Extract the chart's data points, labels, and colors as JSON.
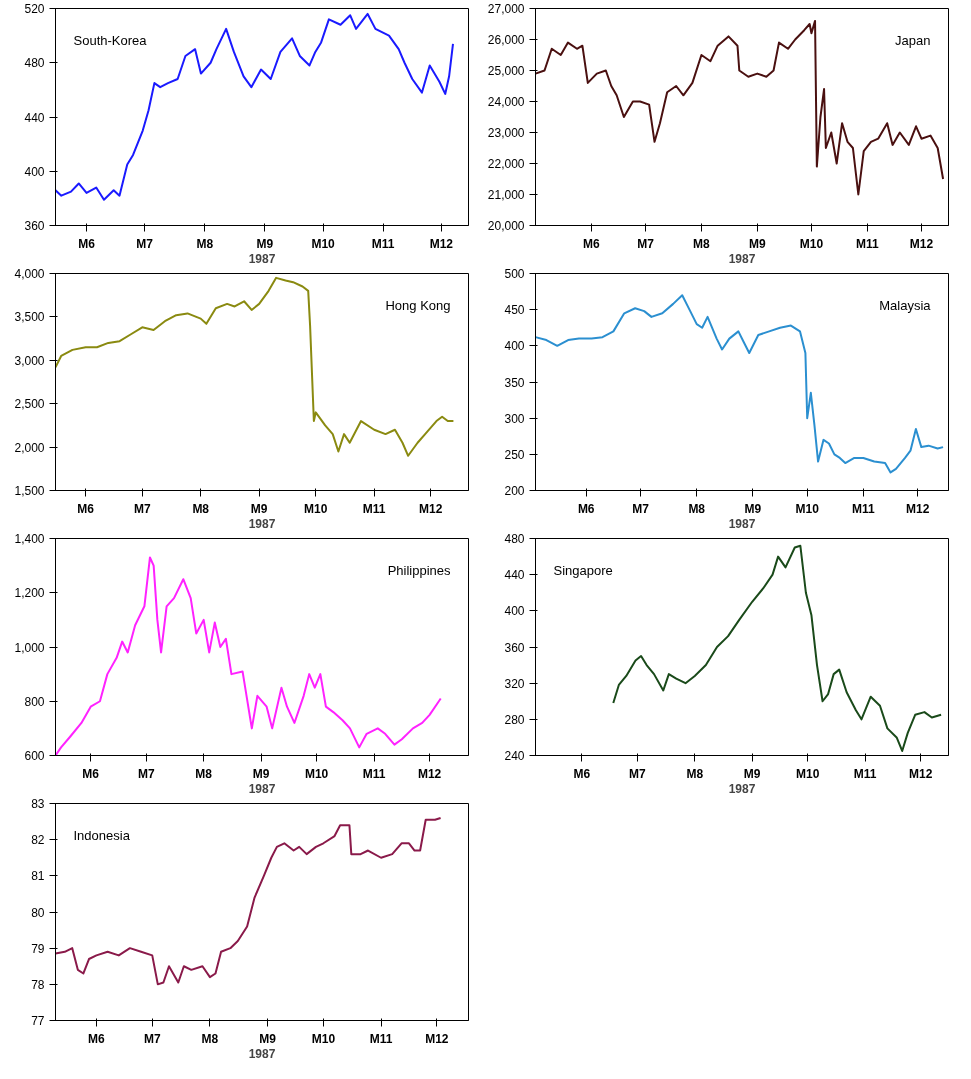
{
  "chart_data": [
    {
      "type": "line",
      "title": "South-Korea",
      "xlabel": "1987",
      "xlim": [
        "1987-05-30",
        "1987-12-29"
      ],
      "ylim": [
        360,
        520
      ],
      "yticks": [
        360,
        400,
        440,
        480,
        520
      ],
      "xticks": [
        {
          "value": "1987-06-15",
          "label": "M6"
        },
        {
          "value": "1987-07-15",
          "label": "M7"
        },
        {
          "value": "1987-08-15",
          "label": "M8"
        },
        {
          "value": "1987-09-15",
          "label": "M9"
        },
        {
          "value": "1987-10-15",
          "label": "M10"
        },
        {
          "value": "1987-11-15",
          "label": "M11"
        },
        {
          "value": "1987-12-15",
          "label": "M12"
        }
      ],
      "x": [
        "1987-05-30",
        "1987-06-02",
        "1987-06-07",
        "1987-06-11",
        "1987-06-15",
        "1987-06-20",
        "1987-06-24",
        "1987-06-29",
        "1987-07-02",
        "1987-07-06",
        "1987-07-09",
        "1987-07-14",
        "1987-07-17",
        "1987-07-20",
        "1987-07-23",
        "1987-07-27",
        "1987-08-01",
        "1987-08-05",
        "1987-08-10",
        "1987-08-13",
        "1987-08-18",
        "1987-08-21",
        "1987-08-26",
        "1987-08-30",
        "1987-09-04",
        "1987-09-08",
        "1987-09-13",
        "1987-09-18",
        "1987-09-23",
        "1987-09-29",
        "1987-10-03",
        "1987-10-08",
        "1987-10-11",
        "1987-10-14",
        "1987-10-18",
        "1987-10-24",
        "1987-10-29",
        "1987-11-01",
        "1987-11-07",
        "1987-11-11",
        "1987-11-18",
        "1987-11-23",
        "1987-11-26",
        "1987-11-30",
        "1987-12-05",
        "1987-12-09",
        "1987-12-14",
        "1987-12-17",
        "1987-12-19",
        "1987-12-21"
      ],
      "series": [
        {
          "color": "#1a1aff",
          "values": [
            386,
            382,
            385,
            391,
            384,
            388,
            379,
            386,
            382,
            405,
            412,
            430,
            445,
            465,
            462,
            465,
            468,
            485,
            490,
            472,
            480,
            490,
            505,
            488,
            470,
            462,
            475,
            468,
            488,
            498,
            485,
            478,
            488,
            495,
            512,
            508,
            515,
            505,
            516,
            505,
            500,
            490,
            480,
            468,
            458,
            478,
            466,
            457,
            470,
            494
          ]
        }
      ]
    },
    {
      "type": "line",
      "title": "Japan",
      "xlabel": "1987",
      "xlim": [
        "1987-05-15",
        "1987-12-30"
      ],
      "ylim": [
        20000,
        27000
      ],
      "yticks": [
        {
          "value": 20000,
          "label": "20,000"
        },
        {
          "value": 21000,
          "label": "21,000"
        },
        {
          "value": 22000,
          "label": "22,000"
        },
        {
          "value": 23000,
          "label": "23,000"
        },
        {
          "value": 24000,
          "label": "24,000"
        },
        {
          "value": 25000,
          "label": "25,000"
        },
        {
          "value": 26000,
          "label": "26,000"
        },
        {
          "value": 27000,
          "label": "27,000"
        }
      ],
      "xticks": [
        {
          "value": "1987-06-15",
          "label": "M6"
        },
        {
          "value": "1987-07-15",
          "label": "M7"
        },
        {
          "value": "1987-08-15",
          "label": "M8"
        },
        {
          "value": "1987-09-15",
          "label": "M9"
        },
        {
          "value": "1987-10-15",
          "label": "M10"
        },
        {
          "value": "1987-11-15",
          "label": "M11"
        },
        {
          "value": "1987-12-15",
          "label": "M12"
        }
      ],
      "x": [
        "1987-05-15",
        "1987-05-20",
        "1987-05-24",
        "1987-05-29",
        "1987-06-02",
        "1987-06-07",
        "1987-06-10",
        "1987-06-13",
        "1987-06-18",
        "1987-06-23",
        "1987-06-26",
        "1987-06-29",
        "1987-07-03",
        "1987-07-08",
        "1987-07-12",
        "1987-07-17",
        "1987-07-20",
        "1987-07-23",
        "1987-07-27",
        "1987-08-01",
        "1987-08-05",
        "1987-08-10",
        "1987-08-15",
        "1987-08-20",
        "1987-08-24",
        "1987-08-30",
        "1987-09-04",
        "1987-09-05",
        "1987-09-10",
        "1987-09-15",
        "1987-09-20",
        "1987-09-24",
        "1987-09-27",
        "1987-10-02",
        "1987-10-06",
        "1987-10-11",
        "1987-10-14",
        "1987-10-15",
        "1987-10-17",
        "1987-10-18",
        "1987-10-20",
        "1987-10-22",
        "1987-10-23",
        "1987-10-26",
        "1987-10-29",
        "1987-11-01",
        "1987-11-04",
        "1987-11-07",
        "1987-11-10",
        "1987-11-13",
        "1987-11-17",
        "1987-11-21",
        "1987-11-26",
        "1987-11-29",
        "1987-12-03",
        "1987-12-08",
        "1987-12-12",
        "1987-12-15",
        "1987-12-20",
        "1987-12-24",
        "1987-12-27"
      ],
      "series": [
        {
          "color": "#4a1010",
          "values": [
            24900,
            25000,
            25700,
            25500,
            25900,
            25700,
            25800,
            24600,
            24900,
            25000,
            24500,
            24200,
            23500,
            24000,
            24000,
            23900,
            22700,
            23300,
            24300,
            24500,
            24200,
            24600,
            25500,
            25300,
            25800,
            26100,
            25800,
            25000,
            24800,
            24900,
            24800,
            25000,
            25900,
            25700,
            26000,
            26300,
            26500,
            26200,
            26600,
            21900,
            23500,
            24400,
            22500,
            23000,
            22000,
            23300,
            22700,
            22500,
            21000,
            22400,
            22700,
            22800,
            23300,
            22600,
            23000,
            22600,
            23200,
            22800,
            22900,
            22500,
            21500
          ]
        }
      ]
    },
    {
      "type": "line",
      "title": "Hong Kong",
      "xlabel": "1987",
      "xlim": [
        "1987-05-30",
        "1988-01-04"
      ],
      "ylim": [
        1500,
        4000
      ],
      "yticks": [
        {
          "value": 1500,
          "label": "1,500"
        },
        {
          "value": 2000,
          "label": "2,000"
        },
        {
          "value": 2500,
          "label": "2,500"
        },
        {
          "value": 3000,
          "label": "3,000"
        },
        {
          "value": 3500,
          "label": "3,500"
        },
        {
          "value": 4000,
          "label": "4,000"
        }
      ],
      "xticks": [
        {
          "value": "1987-06-15",
          "label": "M6"
        },
        {
          "value": "1987-07-15",
          "label": "M7"
        },
        {
          "value": "1987-08-15",
          "label": "M8"
        },
        {
          "value": "1987-09-15",
          "label": "M9"
        },
        {
          "value": "1987-10-15",
          "label": "M10"
        },
        {
          "value": "1987-11-15",
          "label": "M11"
        },
        {
          "value": "1987-12-15",
          "label": "M12"
        }
      ],
      "x": [
        "1987-05-30",
        "1987-06-02",
        "1987-06-08",
        "1987-06-15",
        "1987-06-21",
        "1987-06-27",
        "1987-07-03",
        "1987-07-09",
        "1987-07-15",
        "1987-07-21",
        "1987-07-27",
        "1987-08-02",
        "1987-08-08",
        "1987-08-15",
        "1987-08-18",
        "1987-08-23",
        "1987-08-29",
        "1987-09-02",
        "1987-09-07",
        "1987-09-11",
        "1987-09-15",
        "1987-09-20",
        "1987-09-24",
        "1987-09-29",
        "1987-10-03",
        "1987-10-08",
        "1987-10-11",
        "1987-10-12",
        "1987-10-14",
        "1987-10-15",
        "1987-10-20",
        "1987-10-24",
        "1987-10-27",
        "1987-10-30",
        "1987-11-02",
        "1987-11-08",
        "1987-11-15",
        "1987-11-21",
        "1987-11-26",
        "1987-11-30",
        "1987-12-03",
        "1987-12-08",
        "1987-12-12",
        "1987-12-18",
        "1987-12-21",
        "1987-12-24",
        "1987-12-27"
      ],
      "series": [
        {
          "color": "#8a8a10",
          "values": [
            2920,
            3050,
            3120,
            3150,
            3150,
            3200,
            3220,
            3300,
            3380,
            3350,
            3450,
            3520,
            3540,
            3480,
            3420,
            3600,
            3650,
            3620,
            3680,
            3580,
            3650,
            3800,
            3950,
            3920,
            3900,
            3850,
            3800,
            3400,
            2300,
            2400,
            2250,
            2150,
            1950,
            2150,
            2050,
            2300,
            2200,
            2150,
            2200,
            2050,
            1900,
            2050,
            2150,
            2300,
            2350,
            2300,
            2300
          ]
        }
      ]
    },
    {
      "type": "line",
      "title": "Malaysia",
      "xlabel": "1987",
      "xlim": [
        "1987-05-18",
        "1988-01-01"
      ],
      "ylim": [
        200,
        500
      ],
      "yticks": [
        200,
        250,
        300,
        350,
        400,
        450,
        500
      ],
      "xticks": [
        {
          "value": "1987-06-15",
          "label": "M6"
        },
        {
          "value": "1987-07-15",
          "label": "M7"
        },
        {
          "value": "1987-08-15",
          "label": "M8"
        },
        {
          "value": "1987-09-15",
          "label": "M9"
        },
        {
          "value": "1987-10-15",
          "label": "M10"
        },
        {
          "value": "1987-11-15",
          "label": "M11"
        },
        {
          "value": "1987-12-15",
          "label": "M12"
        }
      ],
      "x": [
        "1987-05-18",
        "1987-05-24",
        "1987-05-30",
        "1987-06-05",
        "1987-06-11",
        "1987-06-18",
        "1987-06-24",
        "1987-06-30",
        "1987-07-06",
        "1987-07-12",
        "1987-07-17",
        "1987-07-21",
        "1987-07-27",
        "1987-08-02",
        "1987-08-07",
        "1987-08-11",
        "1987-08-15",
        "1987-08-18",
        "1987-08-21",
        "1987-08-26",
        "1987-08-29",
        "1987-09-02",
        "1987-09-07",
        "1987-09-10",
        "1987-09-13",
        "1987-09-18",
        "1987-09-24",
        "1987-09-30",
        "1987-10-06",
        "1987-10-11",
        "1987-10-14",
        "1987-10-15",
        "1987-10-17",
        "1987-10-19",
        "1987-10-21",
        "1987-10-24",
        "1987-10-27",
        "1987-10-30",
        "1987-11-02",
        "1987-11-05",
        "1987-11-10",
        "1987-11-15",
        "1987-11-21",
        "1987-11-27",
        "1987-11-30",
        "1987-12-03",
        "1987-12-08",
        "1987-12-11",
        "1987-12-14",
        "1987-12-17",
        "1987-12-21",
        "1987-12-26",
        "1987-12-29"
      ],
      "series": [
        {
          "color": "#2b8fd0",
          "values": [
            412,
            408,
            400,
            408,
            410,
            410,
            412,
            420,
            445,
            452,
            448,
            440,
            445,
            458,
            470,
            450,
            430,
            425,
            440,
            410,
            395,
            410,
            420,
            405,
            390,
            415,
            420,
            425,
            428,
            420,
            390,
            300,
            335,
            290,
            240,
            270,
            265,
            250,
            245,
            238,
            245,
            245,
            240,
            238,
            225,
            230,
            245,
            255,
            285,
            260,
            262,
            258,
            260
          ]
        }
      ]
    },
    {
      "type": "line",
      "title": "Philippines",
      "xlabel": "1987",
      "xlim": [
        "1987-05-27",
        "1988-01-05"
      ],
      "ylim": [
        600,
        1400
      ],
      "yticks": [
        600,
        800,
        {
          "value": 1000,
          "label": "1,000"
        },
        {
          "value": 1200,
          "label": "1,200"
        },
        {
          "value": 1400,
          "label": "1,400"
        }
      ],
      "xticks": [
        {
          "value": "1987-06-15",
          "label": "M6"
        },
        {
          "value": "1987-07-15",
          "label": "M7"
        },
        {
          "value": "1987-08-15",
          "label": "M8"
        },
        {
          "value": "1987-09-15",
          "label": "M9"
        },
        {
          "value": "1987-10-15",
          "label": "M10"
        },
        {
          "value": "1987-11-15",
          "label": "M11"
        },
        {
          "value": "1987-12-15",
          "label": "M12"
        }
      ],
      "x": [
        "1987-05-27",
        "1987-05-30",
        "1987-06-04",
        "1987-06-10",
        "1987-06-15",
        "1987-06-20",
        "1987-06-24",
        "1987-06-29",
        "1987-07-02",
        "1987-07-05",
        "1987-07-09",
        "1987-07-14",
        "1987-07-17",
        "1987-07-19",
        "1987-07-21",
        "1987-07-23",
        "1987-07-26",
        "1987-07-30",
        "1987-08-04",
        "1987-08-08",
        "1987-08-11",
        "1987-08-15",
        "1987-08-18",
        "1987-08-21",
        "1987-08-24",
        "1987-08-27",
        "1987-08-30",
        "1987-09-05",
        "1987-09-10",
        "1987-09-13",
        "1987-09-18",
        "1987-09-21",
        "1987-09-26",
        "1987-09-29",
        "1987-10-03",
        "1987-10-08",
        "1987-10-11",
        "1987-10-14",
        "1987-10-17",
        "1987-10-20",
        "1987-10-24",
        "1987-10-29",
        "1987-11-02",
        "1987-11-07",
        "1987-11-11",
        "1987-11-17",
        "1987-11-21",
        "1987-11-26",
        "1987-11-30",
        "1987-12-06",
        "1987-12-11",
        "1987-12-15",
        "1987-12-20",
        "1987-12-21"
      ],
      "series": [
        {
          "color": "#ff22ff",
          "values": [
            600,
            630,
            670,
            720,
            780,
            800,
            900,
            960,
            1020,
            980,
            1080,
            1150,
            1330,
            1300,
            1100,
            980,
            1150,
            1180,
            1250,
            1180,
            1050,
            1100,
            980,
            1090,
            1000,
            1030,
            900,
            910,
            700,
            820,
            780,
            700,
            850,
            780,
            720,
            820,
            900,
            850,
            900,
            780,
            760,
            730,
            700,
            630,
            680,
            700,
            680,
            640,
            660,
            700,
            720,
            750,
            800,
            810
          ]
        }
      ]
    },
    {
      "type": "line",
      "title": "Singapore",
      "xlabel": "1987",
      "xlim": [
        "1987-05-21",
        "1987-12-30"
      ],
      "ylim": [
        240,
        480
      ],
      "yticks": [
        240,
        280,
        320,
        360,
        400,
        440,
        480
      ],
      "xticks": [
        {
          "value": "1987-06-15",
          "label": "M6"
        },
        {
          "value": "1987-07-15",
          "label": "M7"
        },
        {
          "value": "1987-08-15",
          "label": "M8"
        },
        {
          "value": "1987-09-15",
          "label": "M9"
        },
        {
          "value": "1987-10-15",
          "label": "M10"
        },
        {
          "value": "1987-11-15",
          "label": "M11"
        },
        {
          "value": "1987-12-15",
          "label": "M12"
        }
      ],
      "x": [
        "1987-07-02",
        "1987-07-05",
        "1987-07-09",
        "1987-07-14",
        "1987-07-17",
        "1987-07-20",
        "1987-07-24",
        "1987-07-29",
        "1987-08-01",
        "1987-08-05",
        "1987-08-10",
        "1987-08-15",
        "1987-08-21",
        "1987-08-27",
        "1987-09-02",
        "1987-09-08",
        "1987-09-15",
        "1987-09-21",
        "1987-09-26",
        "1987-09-29",
        "1987-10-03",
        "1987-10-08",
        "1987-10-11",
        "1987-10-14",
        "1987-10-17",
        "1987-10-20",
        "1987-10-23",
        "1987-10-26",
        "1987-10-29",
        "1987-11-01",
        "1987-11-05",
        "1987-11-10",
        "1987-11-13",
        "1987-11-18",
        "1987-11-23",
        "1987-11-27",
        "1987-12-02",
        "1987-12-05",
        "1987-12-08",
        "1987-12-12",
        "1987-12-17",
        "1987-12-21",
        "1987-12-26"
      ],
      "series": [
        {
          "color": "#1a4a1a",
          "values": [
            298,
            318,
            328,
            345,
            350,
            340,
            330,
            312,
            330,
            325,
            320,
            328,
            340,
            360,
            372,
            390,
            410,
            425,
            440,
            460,
            448,
            470,
            472,
            420,
            395,
            340,
            300,
            308,
            330,
            335,
            310,
            290,
            280,
            305,
            295,
            270,
            260,
            245,
            265,
            285,
            288,
            282,
            285
          ]
        }
      ]
    },
    {
      "type": "line",
      "title": "Indonesia",
      "xlabel": "1987",
      "xlim": [
        "1987-05-24",
        "1988-01-01"
      ],
      "ylim": [
        77,
        83
      ],
      "yticks": [
        77,
        78,
        79,
        80,
        81,
        82,
        83
      ],
      "xticks": [
        {
          "value": "1987-06-15",
          "label": "M6"
        },
        {
          "value": "1987-07-15",
          "label": "M7"
        },
        {
          "value": "1987-08-15",
          "label": "M8"
        },
        {
          "value": "1987-09-15",
          "label": "M9"
        },
        {
          "value": "1987-10-15",
          "label": "M10"
        },
        {
          "value": "1987-11-15",
          "label": "M11"
        },
        {
          "value": "1987-12-15",
          "label": "M12"
        }
      ],
      "x": [
        "1987-05-24",
        "1987-05-29",
        "1987-06-02",
        "1987-06-05",
        "1987-06-08",
        "1987-06-11",
        "1987-06-15",
        "1987-06-21",
        "1987-06-27",
        "1987-07-03",
        "1987-07-09",
        "1987-07-15",
        "1987-07-18",
        "1987-07-21",
        "1987-07-24",
        "1987-07-29",
        "1987-08-01",
        "1987-08-05",
        "1987-08-11",
        "1987-08-15",
        "1987-08-18",
        "1987-08-21",
        "1987-08-26",
        "1987-08-30",
        "1987-09-04",
        "1987-09-08",
        "1987-09-13",
        "1987-09-17",
        "1987-09-20",
        "1987-09-24",
        "1987-09-29",
        "1987-10-02",
        "1987-10-06",
        "1987-10-11",
        "1987-10-15",
        "1987-10-21",
        "1987-10-24",
        "1987-10-29",
        "1987-10-30",
        "1987-11-04",
        "1987-11-08",
        "1987-11-15",
        "1987-11-21",
        "1987-11-26",
        "1987-11-30",
        "1987-12-03",
        "1987-12-06",
        "1987-12-09",
        "1987-12-14",
        "1987-12-17"
      ],
      "series": [
        {
          "color": "#8a1a4a",
          "values": [
            78.85,
            78.9,
            79.0,
            78.4,
            78.3,
            78.7,
            78.8,
            78.9,
            78.8,
            79.0,
            78.9,
            78.8,
            78.0,
            78.05,
            78.5,
            78.05,
            78.5,
            78.4,
            78.5,
            78.2,
            78.3,
            78.9,
            79.0,
            79.2,
            79.6,
            80.4,
            81.0,
            81.5,
            81.8,
            81.9,
            81.7,
            81.8,
            81.6,
            81.8,
            81.9,
            82.1,
            82.4,
            82.4,
            81.6,
            81.6,
            81.7,
            81.5,
            81.6,
            81.9,
            81.9,
            81.7,
            81.7,
            82.55,
            82.55,
            82.6
          ]
        }
      ]
    }
  ]
}
